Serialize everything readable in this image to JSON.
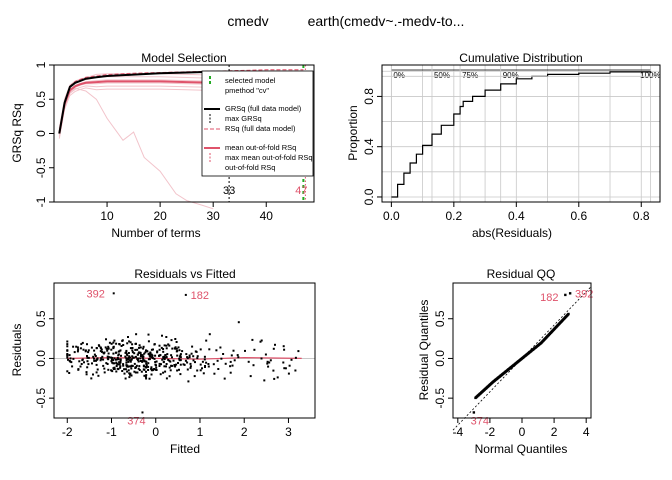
{
  "header": {
    "response": "cmedv",
    "call": "earth(cmedv~.-medv-to..."
  },
  "colors": {
    "pink": "#DF536B",
    "pink_light": "#F2C4CB",
    "green": "#22AA22",
    "gray": "#C8C8C8",
    "black": "#000000"
  },
  "chart_data": [
    {
      "type": "line",
      "title": "Model Selection",
      "xlabel": "Number of terms",
      "ylabel": "GRSq   RSq",
      "xlim": [
        0,
        49
      ],
      "ylim": [
        -1,
        1
      ],
      "xticks": [
        "10",
        "20",
        "30",
        "40"
      ],
      "xtick_values": [
        10,
        20,
        30,
        40
      ],
      "yticks": [
        "-1",
        "-0.5",
        "0",
        "0.5",
        "1"
      ],
      "ytick_values": [
        -1,
        -0.5,
        0,
        0.5,
        1
      ],
      "legend": [
        "selected model",
        "pmethod \"cv\"",
        "GRSq (full data model)",
        "max GRSq",
        "RSq (full data model)",
        "mean out-of-fold RSq",
        "max mean out-of-fold RSq",
        "out-of-fold RSq"
      ],
      "annotations": [
        "33",
        "47"
      ],
      "annotation_x": [
        33,
        47
      ],
      "selected_terms": 47,
      "max_grsq_terms": 33,
      "series": [
        {
          "name": "GRSq (full data model)",
          "x": [
            1,
            2,
            3,
            4,
            5,
            6,
            8,
            10,
            15,
            20,
            25,
            30,
            33,
            35,
            40,
            45,
            47
          ],
          "values": [
            0.0,
            0.45,
            0.68,
            0.74,
            0.77,
            0.8,
            0.82,
            0.84,
            0.86,
            0.88,
            0.89,
            0.9,
            0.9,
            0.9,
            0.9,
            0.9,
            0.9
          ]
        },
        {
          "name": "RSq (full data model)",
          "x": [
            1,
            2,
            3,
            4,
            5,
            6,
            8,
            10,
            15,
            20,
            25,
            30,
            35,
            40,
            45,
            47
          ],
          "values": [
            0.0,
            0.46,
            0.69,
            0.76,
            0.79,
            0.82,
            0.84,
            0.86,
            0.88,
            0.89,
            0.9,
            0.91,
            0.92,
            0.93,
            0.93,
            0.93
          ]
        },
        {
          "name": "mean out-of-fold RSq",
          "x": [
            1,
            2,
            3,
            4,
            5,
            6,
            8,
            10,
            15,
            20,
            25,
            30,
            35,
            40,
            45,
            47
          ],
          "values": [
            0.0,
            0.43,
            0.63,
            0.69,
            0.72,
            0.74,
            0.75,
            0.76,
            0.76,
            0.76,
            0.75,
            0.74,
            0.73,
            0.72,
            0.71,
            0.71
          ]
        },
        {
          "name": "out-of-fold RSq",
          "x": [
            1,
            2,
            3,
            4,
            5,
            6,
            8,
            10,
            13,
            15,
            17,
            20,
            23,
            25,
            28,
            30
          ],
          "values": [
            0.0,
            0.4,
            0.6,
            0.66,
            0.64,
            0.62,
            0.5,
            0.22,
            -0.1,
            0.02,
            -0.35,
            -0.55,
            -0.88,
            -0.98,
            -1.05,
            -1.1
          ]
        }
      ]
    },
    {
      "type": "line",
      "title": "Cumulative Distribution",
      "xlabel": "abs(Residuals)",
      "ylabel": "Proportion",
      "xlim": [
        -0.03,
        0.86
      ],
      "ylim": [
        -0.04,
        1.05
      ],
      "xticks": [
        "0.0",
        "0.2",
        "0.4",
        "0.6",
        "0.8"
      ],
      "xtick_values": [
        0,
        0.2,
        0.4,
        0.6,
        0.8
      ],
      "yticks": [
        "0.0",
        "0.4",
        "0.8"
      ],
      "ytick_values": [
        0,
        0.4,
        0.8
      ],
      "quantile_labels": [
        "0%",
        "50%",
        "75%",
        "90%",
        "100%"
      ],
      "quantile_values": [
        0.0,
        0.13,
        0.22,
        0.35,
        0.83
      ],
      "series": [
        {
          "name": "",
          "x": [
            0,
            0.02,
            0.04,
            0.06,
            0.08,
            0.1,
            0.13,
            0.16,
            0.2,
            0.22,
            0.23,
            0.26,
            0.3,
            0.35,
            0.4,
            0.45,
            0.5,
            0.6,
            0.7,
            0.83
          ],
          "values": [
            0,
            0.1,
            0.19,
            0.27,
            0.34,
            0.41,
            0.5,
            0.57,
            0.66,
            0.72,
            0.76,
            0.8,
            0.85,
            0.9,
            0.94,
            0.96,
            0.975,
            0.985,
            0.995,
            1.0
          ]
        }
      ]
    },
    {
      "type": "scatter",
      "title": "Residuals vs Fitted",
      "xlabel": "Fitted",
      "ylabel": "Residuals",
      "xlim": [
        -2.3,
        3.6
      ],
      "ylim": [
        -0.75,
        0.95
      ],
      "xticks": [
        "-2",
        "-1",
        "0",
        "1",
        "2",
        "3"
      ],
      "xtick_values": [
        -2,
        -1,
        0,
        1,
        2,
        3
      ],
      "yticks": [
        "-0.5",
        "0.0",
        "0.5"
      ],
      "ytick_values": [
        -0.5,
        0,
        0.5
      ],
      "point_count": 506,
      "smooth_x": [
        -2.0,
        -1.0,
        0.0,
        1.0,
        2.0,
        3.3
      ],
      "smooth_y": [
        0.0,
        0.01,
        0.0,
        -0.01,
        0.01,
        0.0
      ],
      "labeled_points": [
        {
          "label": "392",
          "x": -0.95,
          "y": 0.82
        },
        {
          "label": "182",
          "x": 0.68,
          "y": 0.8
        },
        {
          "label": "374",
          "x": -0.3,
          "y": -0.68
        }
      ]
    },
    {
      "type": "scatter",
      "title": "Residual QQ",
      "xlabel": "Normal Quantiles",
      "ylabel": "Residual Quantiles",
      "xlim": [
        -4.3,
        4.3
      ],
      "ylim": [
        -0.75,
        0.95
      ],
      "xticks": [
        "-4",
        "-2",
        "0",
        "2",
        "4"
      ],
      "xtick_values": [
        -4,
        -2,
        0,
        2,
        4
      ],
      "yticks": [
        "-0.5",
        "0.0",
        "0.5"
      ],
      "ytick_values": [
        -0.5,
        0,
        0.5
      ],
      "ref_slope": 0.21,
      "labeled_points": [
        {
          "label": "182",
          "x": 2.7,
          "y": 0.8
        },
        {
          "label": "392",
          "x": 3.0,
          "y": 0.82
        },
        {
          "label": "374",
          "x": -3.0,
          "y": -0.68
        }
      ]
    }
  ]
}
